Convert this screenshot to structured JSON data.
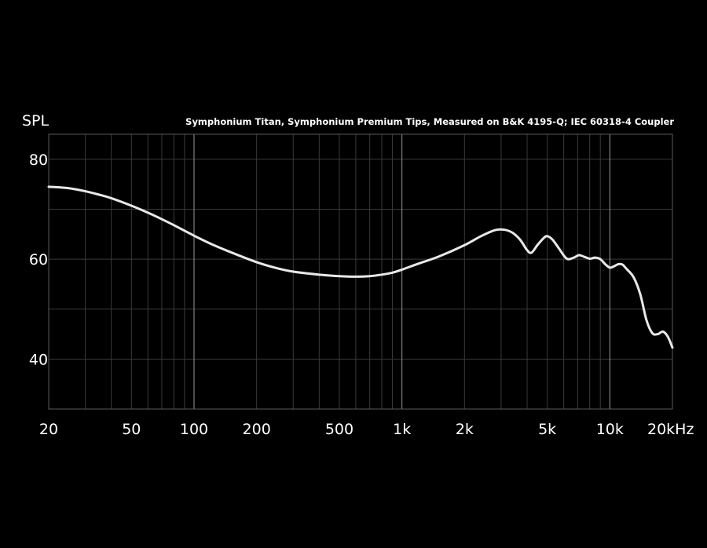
{
  "chart_data": {
    "type": "line",
    "title": "Symphonium Titan, Symphonium Premium Tips, Measured on B&K 4195-Q; IEC 60318-4 Coupler",
    "ylabel": "SPL",
    "xscale": "log",
    "xlim": [
      20,
      20000
    ],
    "ylim": [
      30,
      85
    ],
    "grid": true,
    "legend": "none",
    "x_ticks": [
      {
        "value": 20,
        "label": "20"
      },
      {
        "value": 50,
        "label": "50"
      },
      {
        "value": 100,
        "label": "100"
      },
      {
        "value": 200,
        "label": "200"
      },
      {
        "value": 500,
        "label": "500"
      },
      {
        "value": 1000,
        "label": "1k"
      },
      {
        "value": 2000,
        "label": "2k"
      },
      {
        "value": 5000,
        "label": "5k"
      },
      {
        "value": 10000,
        "label": "10k"
      },
      {
        "value": 20000,
        "label": "20kHz"
      }
    ],
    "y_ticks": [
      {
        "value": 40,
        "label": "40"
      },
      {
        "value": 60,
        "label": "60"
      },
      {
        "value": 80,
        "label": "80"
      }
    ],
    "colors": {
      "background": "#000000",
      "line": "#e8e8e8",
      "grid_minor": "#3a3a3a",
      "grid_major": "#9a9a9a",
      "frame": "#5a5a5a"
    },
    "series": [
      {
        "x": [
          20,
          25,
          30,
          35,
          40,
          50,
          60,
          70,
          80,
          100,
          120,
          150,
          200,
          250,
          300,
          400,
          500,
          600,
          700,
          800,
          900,
          1000,
          1200,
          1500,
          2000,
          2400,
          2800,
          3100,
          3400,
          3700,
          4000,
          4200,
          4500,
          4800,
          5000,
          5300,
          5700,
          6200,
          6700,
          7100,
          7500,
          8000,
          8500,
          9000,
          9500,
          10000,
          10500,
          11000,
          11500,
          12000,
          13000,
          14000,
          15000,
          16000,
          17000,
          18000,
          19000,
          20000
        ],
        "y": [
          74.5,
          74.2,
          73.6,
          72.9,
          72.2,
          70.7,
          69.3,
          68.0,
          66.8,
          64.7,
          63.1,
          61.4,
          59.4,
          58.2,
          57.5,
          56.9,
          56.6,
          56.5,
          56.6,
          56.9,
          57.3,
          57.9,
          59.1,
          60.5,
          62.8,
          64.6,
          65.8,
          65.9,
          65.3,
          63.9,
          61.8,
          61.3,
          62.9,
          64.2,
          64.6,
          63.9,
          62.1,
          60.1,
          60.3,
          60.8,
          60.5,
          60.1,
          60.3,
          60.0,
          59.0,
          58.3,
          58.6,
          59.0,
          58.9,
          58.1,
          56.4,
          53.0,
          47.8,
          45.2,
          45.0,
          45.5,
          44.5,
          42.3
        ]
      }
    ]
  }
}
